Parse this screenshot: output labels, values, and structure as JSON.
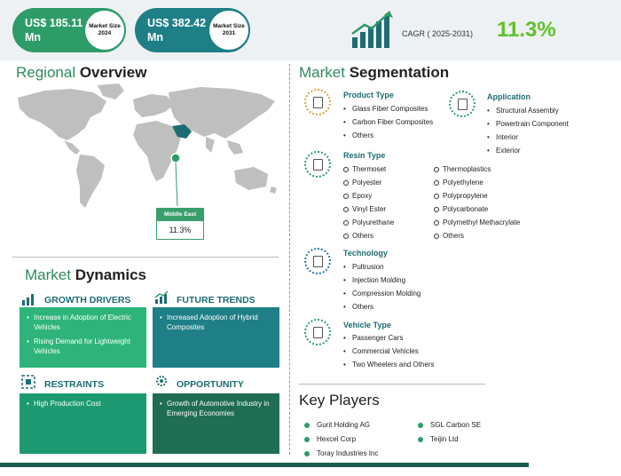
{
  "header": {
    "market_2024": {
      "value": "US$   185.11 Mn",
      "label": "Market Size 2024"
    },
    "market_2031": {
      "value": "US$  382.42 Mn",
      "label": "Market Size 2031"
    },
    "cagr_label": "CAGR ( 2025-2031)",
    "cagr_value": "11.3%"
  },
  "regional": {
    "title_a": "Regional ",
    "title_b": "Overview",
    "region_label": "Middle East",
    "region_value": "11.3%"
  },
  "dynamics": {
    "title_a": "Market ",
    "title_b": "Dynamics",
    "growth_drivers": {
      "title": "GROWTH DRIVERS",
      "items": [
        "Increase in Adoption of Electric Vehicles",
        "Rising Demand for Lightweight Vehicles"
      ]
    },
    "future_trends": {
      "title": "FUTURE TRENDS",
      "items": [
        "Increased Adoption of Hybrid Composites"
      ]
    },
    "restraints": {
      "title": "RESTRAINTS",
      "items": [
        "High Production Cost"
      ]
    },
    "opportunity": {
      "title": "OPPORTUNITY",
      "items": [
        "Growth of Automotive Industry in Emerging Economies"
      ]
    }
  },
  "segmentation": {
    "title_a": "Market ",
    "title_b": "Segmentation",
    "product_type": {
      "title": "Product Type",
      "items": [
        "Glass Fiber Composites",
        "Carbon Fiber Composites",
        "Others"
      ]
    },
    "application": {
      "title": "Application",
      "items": [
        "Structural Assembly",
        "Powertrain Component",
        "Interior",
        "Exterior"
      ]
    },
    "resin_type": {
      "title": "Resin Type",
      "col1": [
        "Thermoset",
        "Polyester",
        "Epoxy",
        "Vinyl Ester",
        "Polyurethane",
        "Others"
      ],
      "col2": [
        "Thermoplastics",
        "Polyethylene",
        "Polypropylene",
        "Polycarbonate",
        "Polymethyl Methacrylate",
        "Others"
      ]
    },
    "technology": {
      "title": "Technology",
      "items": [
        "Pultrusion",
        "Injection Molding",
        "Compression Molding",
        "Others"
      ]
    },
    "vehicle_type": {
      "title": "Vehicle Type",
      "items": [
        "Passenger Cars",
        "Commercial Vehicles",
        "Two Wheelers and Others"
      ]
    }
  },
  "key_players": {
    "title": "Key Players",
    "col1": [
      "Gurit Holding AG",
      "Hexcel Corp",
      "Toray Industries Inc"
    ],
    "col2": [
      "SGL Carbon SE",
      "Teijin Ltd"
    ]
  },
  "colors": {
    "accent_green": "#2e9c68",
    "teal": "#1e7f86",
    "cagr_green": "#5ec22a",
    "dark_green": "#1c5c4c"
  }
}
